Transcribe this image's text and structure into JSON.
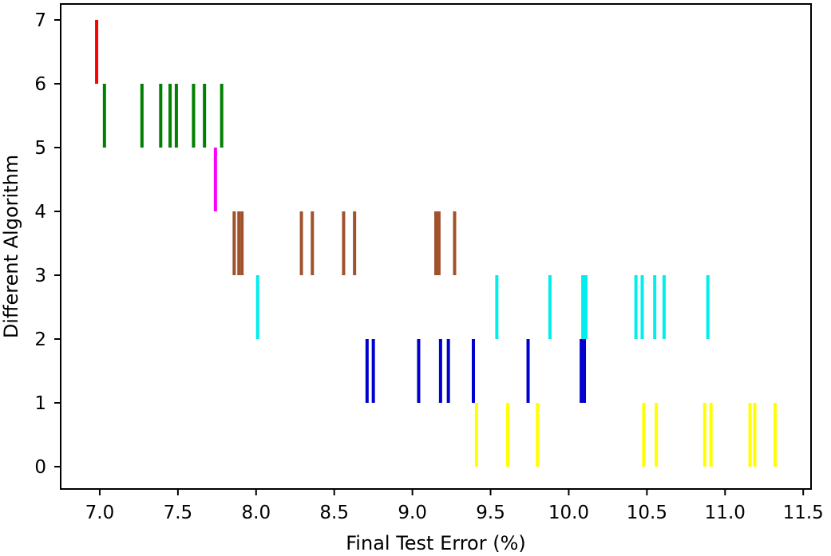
{
  "chart_data": {
    "type": "scatter",
    "marker": "vertical-line",
    "title": "",
    "xlabel": "Final Test Error (%)",
    "ylabel": "Different Algorithm",
    "xlim": [
      6.75,
      11.55
    ],
    "ylim": [
      -0.35,
      7.25
    ],
    "xticks": [
      "7.0",
      "7.5",
      "8.0",
      "8.5",
      "9.0",
      "9.5",
      "10.0",
      "10.5",
      "11.0",
      "11.5"
    ],
    "yticks": [
      "0",
      "1",
      "2",
      "3",
      "4",
      "5",
      "6",
      "7"
    ],
    "grid": false,
    "series": [
      {
        "y_start": 0,
        "color": "#ffff00",
        "x": [
          9.41,
          9.61,
          9.8,
          10.48,
          10.56,
          10.87,
          10.91,
          11.16,
          11.19,
          11.32
        ]
      },
      {
        "y_start": 1,
        "color": "#0000cc",
        "x": [
          8.71,
          8.75,
          9.04,
          9.18,
          9.23,
          9.39,
          9.74,
          10.08,
          10.1
        ]
      },
      {
        "y_start": 2,
        "color": "#00eeee",
        "x": [
          8.01,
          9.54,
          9.88,
          10.09,
          10.11,
          10.43,
          10.47,
          10.55,
          10.61,
          10.89
        ]
      },
      {
        "y_start": 3,
        "color": "#a0522d",
        "x": [
          7.86,
          7.89,
          7.91,
          8.29,
          8.36,
          8.56,
          8.63,
          9.15,
          9.17,
          9.27
        ]
      },
      {
        "y_start": 4,
        "color": "#ff00ff",
        "x": [
          7.74
        ]
      },
      {
        "y_start": 5,
        "color": "#008000",
        "x": [
          7.03,
          7.27,
          7.39,
          7.45,
          7.49,
          7.6,
          7.67,
          7.78
        ]
      },
      {
        "y_start": 6,
        "color": "#ff0000",
        "x": [
          6.98
        ]
      }
    ]
  }
}
